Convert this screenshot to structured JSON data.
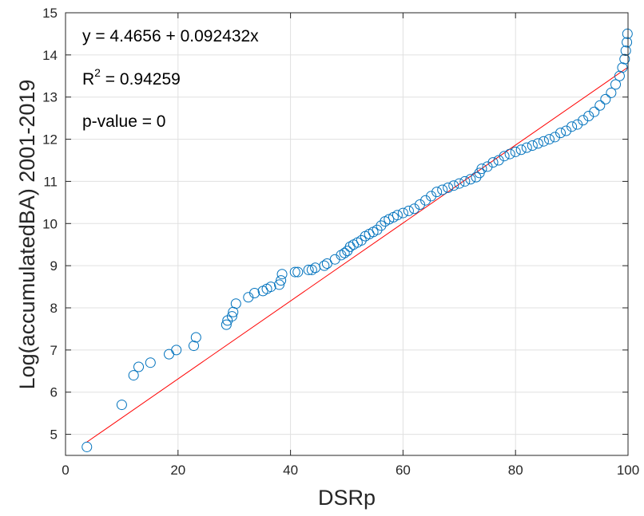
{
  "chart_data": {
    "type": "scatter",
    "title": "",
    "xlabel": "DSRp",
    "ylabel": "Log(accumulatedBA) 2001-2019",
    "xlim": [
      0,
      100
    ],
    "ylim": [
      4.5,
      15
    ],
    "xticks": [
      0,
      20,
      40,
      60,
      80,
      100
    ],
    "xtick_labels": [
      "0",
      "20",
      "40",
      "60",
      "80",
      "100"
    ],
    "yticks": [
      5,
      6,
      7,
      8,
      9,
      10,
      11,
      12,
      13,
      14,
      15
    ],
    "ytick_labels": [
      "5",
      "6",
      "7",
      "8",
      "9",
      "10",
      "11",
      "12",
      "13",
      "14",
      "15"
    ],
    "grid": true,
    "annotations": {
      "equation": "y = 4.4656 + 0.092432x",
      "r2_prefix": "R",
      "r2_exp": "2",
      "r2_value": " = 0.94259",
      "pvalue": "p-value = 0"
    },
    "fit": {
      "intercept": 4.4656,
      "slope": 0.092432,
      "color": "#ff0000"
    },
    "marker_color": "#0072bd",
    "points": [
      [
        3.8,
        4.7
      ],
      [
        10.0,
        5.7
      ],
      [
        12.1,
        6.4
      ],
      [
        13.0,
        6.6
      ],
      [
        15.1,
        6.7
      ],
      [
        18.4,
        6.9
      ],
      [
        19.7,
        7.0
      ],
      [
        22.8,
        7.1
      ],
      [
        23.2,
        7.3
      ],
      [
        28.6,
        7.6
      ],
      [
        28.8,
        7.7
      ],
      [
        29.6,
        7.8
      ],
      [
        29.8,
        7.9
      ],
      [
        30.3,
        8.1
      ],
      [
        32.5,
        8.25
      ],
      [
        33.6,
        8.35
      ],
      [
        35.1,
        8.4
      ],
      [
        35.8,
        8.45
      ],
      [
        36.5,
        8.5
      ],
      [
        38.0,
        8.55
      ],
      [
        38.3,
        8.65
      ],
      [
        38.5,
        8.8
      ],
      [
        40.8,
        8.85
      ],
      [
        41.3,
        8.85
      ],
      [
        43.2,
        8.9
      ],
      [
        43.8,
        8.9
      ],
      [
        44.4,
        8.95
      ],
      [
        46.0,
        9.0
      ],
      [
        46.5,
        9.05
      ],
      [
        47.9,
        9.15
      ],
      [
        49.0,
        9.25
      ],
      [
        49.6,
        9.3
      ],
      [
        50.1,
        9.35
      ],
      [
        50.6,
        9.45
      ],
      [
        51.2,
        9.5
      ],
      [
        51.9,
        9.55
      ],
      [
        52.6,
        9.6
      ],
      [
        53.3,
        9.7
      ],
      [
        54.0,
        9.75
      ],
      [
        54.7,
        9.8
      ],
      [
        55.4,
        9.85
      ],
      [
        56.1,
        9.95
      ],
      [
        56.8,
        10.05
      ],
      [
        57.5,
        10.1
      ],
      [
        58.3,
        10.15
      ],
      [
        59.0,
        10.2
      ],
      [
        60.0,
        10.25
      ],
      [
        61.0,
        10.3
      ],
      [
        62.0,
        10.35
      ],
      [
        63.0,
        10.45
      ],
      [
        64.0,
        10.55
      ],
      [
        65.0,
        10.65
      ],
      [
        66.0,
        10.75
      ],
      [
        67.0,
        10.8
      ],
      [
        68.0,
        10.85
      ],
      [
        69.0,
        10.9
      ],
      [
        70.0,
        10.95
      ],
      [
        71.0,
        11.0
      ],
      [
        72.0,
        11.05
      ],
      [
        73.0,
        11.1
      ],
      [
        73.6,
        11.2
      ],
      [
        74.0,
        11.3
      ],
      [
        75.0,
        11.35
      ],
      [
        76.0,
        11.45
      ],
      [
        77.0,
        11.5
      ],
      [
        78.0,
        11.6
      ],
      [
        79.0,
        11.65
      ],
      [
        80.0,
        11.7
      ],
      [
        81.0,
        11.75
      ],
      [
        82.0,
        11.8
      ],
      [
        83.0,
        11.85
      ],
      [
        84.0,
        11.9
      ],
      [
        85.0,
        11.95
      ],
      [
        86.0,
        12.0
      ],
      [
        87.0,
        12.05
      ],
      [
        88.0,
        12.15
      ],
      [
        89.0,
        12.2
      ],
      [
        90.0,
        12.3
      ],
      [
        91.0,
        12.35
      ],
      [
        92.0,
        12.45
      ],
      [
        93.0,
        12.55
      ],
      [
        94.0,
        12.65
      ],
      [
        95.0,
        12.8
      ],
      [
        96.0,
        12.95
      ],
      [
        97.0,
        13.1
      ],
      [
        97.8,
        13.3
      ],
      [
        98.5,
        13.5
      ],
      [
        99.0,
        13.7
      ],
      [
        99.4,
        13.9
      ],
      [
        99.6,
        14.1
      ],
      [
        99.8,
        14.3
      ],
      [
        99.9,
        14.5
      ]
    ]
  }
}
